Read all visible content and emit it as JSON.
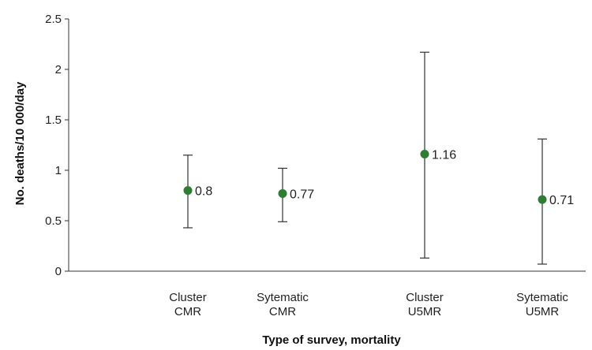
{
  "chart_data": {
    "type": "scatter",
    "title": "",
    "xlabel": "Type of survey, mortality",
    "ylabel": "No. deaths/10 000/day",
    "ylim": [
      0,
      2.5
    ],
    "yticks": [
      "0",
      "0.5",
      "1",
      "1.5",
      "2",
      "2.5"
    ],
    "ytick_values": [
      0,
      0.5,
      1,
      1.5,
      2,
      2.5
    ],
    "grid": false,
    "marker_color": "#2e7d32",
    "categories": [
      {
        "line1": "Cluster",
        "line2": "CMR"
      },
      {
        "line1": "Sytematic",
        "line2": "CMR"
      },
      {
        "line1": "Cluster",
        "line2": "U5MR"
      },
      {
        "line1": "Sytematic",
        "line2": "U5MR"
      }
    ],
    "points": [
      {
        "value": 0.8,
        "label": "0.8",
        "lower": 0.43,
        "upper": 1.15
      },
      {
        "value": 0.77,
        "label": "0.77",
        "lower": 0.49,
        "upper": 1.02
      },
      {
        "value": 1.16,
        "label": "1.16",
        "lower": 0.13,
        "upper": 2.17
      },
      {
        "value": 0.71,
        "label": "0.71",
        "lower": 0.07,
        "upper": 1.31
      }
    ]
  }
}
